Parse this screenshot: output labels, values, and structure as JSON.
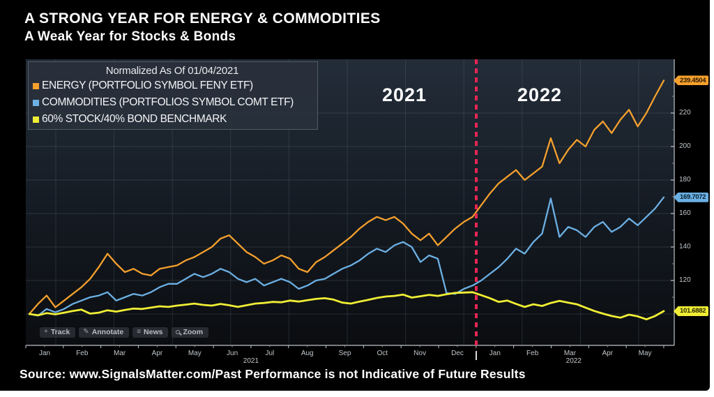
{
  "header": {
    "title": "A STRONG YEAR FOR ENERGY & COMMODITIES",
    "subtitle": "A Weak Year for Stocks & Bonds"
  },
  "legend": {
    "title": "Normalized As Of 01/04/2021",
    "items": [
      {
        "label": "ENERGY (PORTFOLIO SYMBOL FENY ETF)",
        "color": "#f5a02d"
      },
      {
        "label": "COMMODITIES (PORTFOLIOS SYMBOL COMT ETF)",
        "color": "#6cb0e4"
      },
      {
        "label": "60% STOCK/40% BOND BENCHMARK",
        "color": "#f0ee35"
      }
    ]
  },
  "annotations": {
    "year_left": "2021",
    "year_right": "2022"
  },
  "toolbar": {
    "items": [
      {
        "icon": "plus-icon",
        "label": "Track"
      },
      {
        "icon": "pencil-icon",
        "label": "Annotate"
      },
      {
        "icon": "news-icon",
        "label": "News"
      },
      {
        "icon": "magnifier-icon",
        "label": "Zoom"
      }
    ]
  },
  "source": {
    "text": "Source:  www.SignalsMatter.com/Past Performance is not Indicative of Future Results"
  },
  "chart_data": {
    "type": "line",
    "title": "A STRONG YEAR FOR ENERGY & COMMODITIES",
    "normalized_base_note": "Normalized As Of 01/04/2021",
    "x_months": [
      "Jan",
      "Feb",
      "Mar",
      "Apr",
      "May",
      "Jun",
      "Jul",
      "Aug",
      "Sep",
      "Oct",
      "Nov",
      "Dec",
      "Jan",
      "Feb",
      "Mar",
      "Apr",
      "May"
    ],
    "x_year_labels": [
      {
        "label": "2021",
        "month_pos": 6.0
      },
      {
        "label": "2022",
        "month_pos": 14.6
      }
    ],
    "ylim": [
      95,
      252
    ],
    "y_ticks": [
      120,
      140,
      160,
      180,
      200,
      220
    ],
    "grid": true,
    "legend_position": "top-left",
    "divider": {
      "label": "2021/2022 boundary",
      "color": "#e82553",
      "month_index": 12
    },
    "series": [
      {
        "name": "ENERGY (PORTFOLIO SYMBOL FENY ETF)",
        "color": "#f5a02d",
        "last_label": "239.4504",
        "tag_text_color": "#2a1800",
        "values": [
          100,
          106,
          111,
          104,
          108,
          112,
          116,
          121,
          128,
          136,
          130,
          125,
          127,
          124,
          123,
          127,
          128,
          129,
          132,
          134,
          137,
          140,
          145,
          147,
          142,
          137,
          134,
          130,
          132,
          135,
          133,
          127,
          125,
          131,
          134,
          138,
          142,
          146,
          151,
          155,
          158,
          156,
          158,
          154,
          148,
          144,
          148,
          141,
          146,
          151,
          155,
          158,
          165,
          172,
          178,
          182,
          186,
          180,
          184,
          188,
          205,
          190,
          198,
          204,
          200,
          210,
          215,
          208,
          216,
          222,
          212,
          220,
          230,
          239.45
        ]
      },
      {
        "name": "COMMODITIES (PORTFOLIOS SYMBOL COMT ETF)",
        "color": "#6cb0e4",
        "last_label": "169.7072",
        "tag_text_color": "#06202f",
        "values": [
          100,
          99,
          103,
          101,
          103,
          106,
          108,
          110,
          111,
          113,
          108,
          110,
          112,
          111,
          113,
          116,
          118,
          118,
          121,
          124,
          122,
          124,
          127,
          125,
          121,
          119,
          121,
          117,
          119,
          121,
          119,
          115,
          117,
          120,
          121,
          124,
          127,
          129,
          132,
          136,
          139,
          137,
          141,
          143,
          140,
          131,
          135,
          133,
          112.5,
          112,
          115,
          117,
          120,
          124,
          128,
          133,
          139,
          136,
          143,
          148,
          169,
          146,
          152,
          150,
          146,
          152,
          155,
          149,
          152,
          157,
          153,
          158,
          163,
          169.71
        ]
      },
      {
        "name": "60% STOCK/40% BOND BENCHMARK",
        "color": "#f0ee35",
        "last_label": "101.6882",
        "tag_text_color": "#2a2900",
        "values": [
          100,
          99.2,
          100.5,
          99.8,
          100.8,
          101.8,
          102.6,
          100.2,
          100.8,
          102.2,
          101.4,
          102.4,
          103.2,
          103,
          103.8,
          104.6,
          104.2,
          105,
          105.6,
          106.2,
          105.4,
          105,
          106,
          105.2,
          104.2,
          105.2,
          106.2,
          106.6,
          107.2,
          107,
          108,
          107.4,
          108.2,
          109,
          109.4,
          108.6,
          106.8,
          106.2,
          107.4,
          108.4,
          109.6,
          110.4,
          110.8,
          111.6,
          109.8,
          110.6,
          111.4,
          110.8,
          111.8,
          112.6,
          112.8,
          113,
          111.2,
          109.4,
          107.2,
          108,
          106,
          104.2,
          105.8,
          104.8,
          106.6,
          107.8,
          106.8,
          105.8,
          103.8,
          101.8,
          100.2,
          98.8,
          97.8,
          99.6,
          98.6,
          96.8,
          98.8,
          101.69
        ]
      }
    ]
  }
}
